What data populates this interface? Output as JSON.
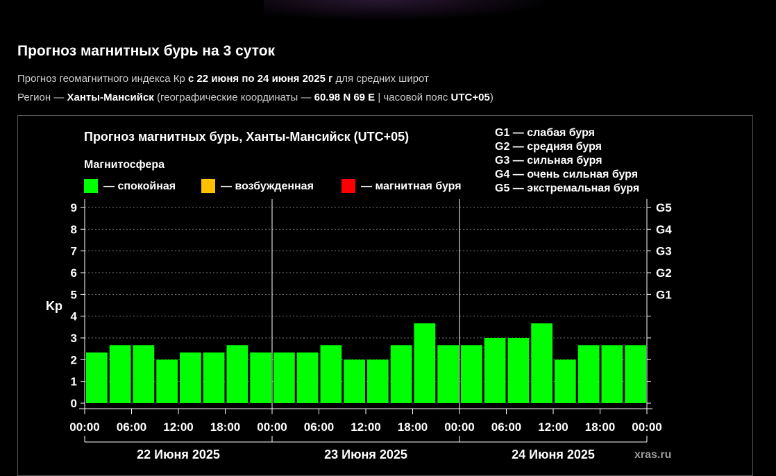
{
  "header": {
    "title": "Прогноз магнитных бурь на 3 суток",
    "info1_pre": "Прогноз геомагнитного индекса Кр",
    "info1_bold": "с 22 июня по 24 июня 2025 г",
    "info1_post": "для средних широт",
    "info2_a": "Регион —",
    "info2_region": "Ханты-Мансийск",
    "info2_b": "(географические координаты —",
    "info2_coords": "60.98 N 69 E",
    "info2_c": "| часовой пояс",
    "info2_tz": "UTC+05",
    "info2_d": ")"
  },
  "chart_data": {
    "type": "bar",
    "title": "Прогноз магнитных бурь, Ханты-Мансийск (UTC+05)",
    "ylabel": "Kp",
    "ylim": [
      0,
      9
    ],
    "yticks": [
      "0",
      "1",
      "2",
      "3",
      "4",
      "5",
      "6",
      "7",
      "8",
      "9"
    ],
    "grid": true,
    "legend_title": "Магнитосфера",
    "legend": [
      {
        "label": "— спокойная",
        "color": "#00ff00"
      },
      {
        "label": "— возбужденная",
        "color": "#ffc000"
      },
      {
        "label": "— магнитная буря",
        "color": "#ff0000"
      }
    ],
    "g_legend": [
      "G1 — слабая буря",
      "G2 — средняя буря",
      "G3 — сильная буря",
      "G4 — очень сильная буря",
      "G5 — экстремальная буря"
    ],
    "g_levels": [
      {
        "label": "G1",
        "kp": 5
      },
      {
        "label": "G2",
        "kp": 6
      },
      {
        "label": "G3",
        "kp": 7
      },
      {
        "label": "G4",
        "kp": 8
      },
      {
        "label": "G5",
        "kp": 9
      }
    ],
    "calm_color": "#00ff00",
    "xtick_labels": [
      "00:00",
      "06:00",
      "12:00",
      "18:00",
      "00:00",
      "06:00",
      "12:00",
      "18:00",
      "00:00",
      "06:00",
      "12:00",
      "18:00",
      "00:00"
    ],
    "days": [
      "22 Июня 2025",
      "23 Июня 2025",
      "24 Июня 2025"
    ],
    "values": [
      2.33,
      2.67,
      2.67,
      2.0,
      2.33,
      2.33,
      2.67,
      2.33,
      2.33,
      2.33,
      2.67,
      2.0,
      2.0,
      2.67,
      3.67,
      2.67,
      2.67,
      3.0,
      3.0,
      3.67,
      2.0,
      2.67,
      2.67,
      2.67
    ]
  },
  "watermark": "xras.ru"
}
